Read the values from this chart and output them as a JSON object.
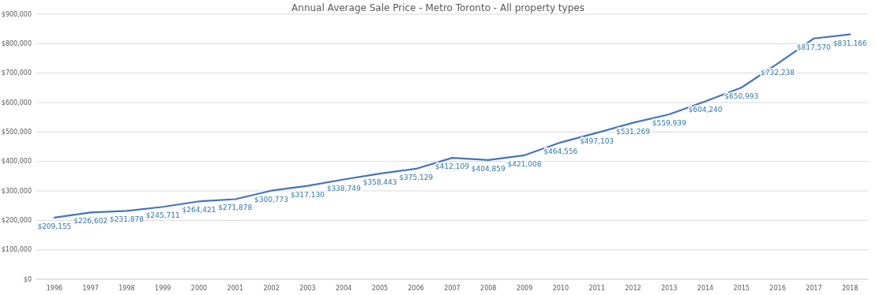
{
  "chart_data": {
    "type": "line",
    "title": "Annual Average Sale Price - Metro Toronto - All property types",
    "categories": [
      "1996",
      "1997",
      "1998",
      "1999",
      "2000",
      "2001",
      "2002",
      "2003",
      "2004",
      "2005",
      "2006",
      "2007",
      "2008",
      "2009",
      "2010",
      "2011",
      "2012",
      "2013",
      "2014",
      "2015",
      "2016",
      "2017",
      "2018"
    ],
    "series": [
      {
        "color": "#4472c4",
        "values": [
          209155,
          226602,
          231878,
          245711,
          264421,
          271878,
          300773,
          317130,
          338749,
          358443,
          375129,
          412109,
          404859,
          421008,
          464556,
          497103,
          531269,
          559939,
          604240,
          650993,
          732238,
          817570,
          831166
        ],
        "value_labels": [
          "$209,155",
          "$226,602",
          "$231,878",
          "$245,711",
          "$264,421",
          "$271,878",
          "$300,773",
          "$317,130",
          "$338,749",
          "$358,443",
          "$375,129",
          "$412,109",
          "$404,859",
          "$421,008",
          "$464,556",
          "$497,103",
          "$531,269",
          "$559,939",
          "$604,240",
          "$650,993",
          "$732,238",
          "$817,570",
          "$831,166"
        ]
      }
    ],
    "ylim": [
      0,
      900000
    ],
    "yticks": [
      {
        "value": 0,
        "label": "$0"
      },
      {
        "value": 100000,
        "label": "$100,000"
      },
      {
        "value": 200000,
        "label": "$200,000"
      },
      {
        "value": 300000,
        "label": "$300,000"
      },
      {
        "value": 400000,
        "label": "$400,000"
      },
      {
        "value": 500000,
        "label": "$500,000"
      },
      {
        "value": 600000,
        "label": "$600,000"
      },
      {
        "value": 700000,
        "label": "$700,000"
      },
      {
        "value": 800000,
        "label": "$800,000"
      },
      {
        "value": 900000,
        "label": "$900,000"
      }
    ],
    "grid": "y",
    "marker": "none",
    "line_style": "solid"
  }
}
